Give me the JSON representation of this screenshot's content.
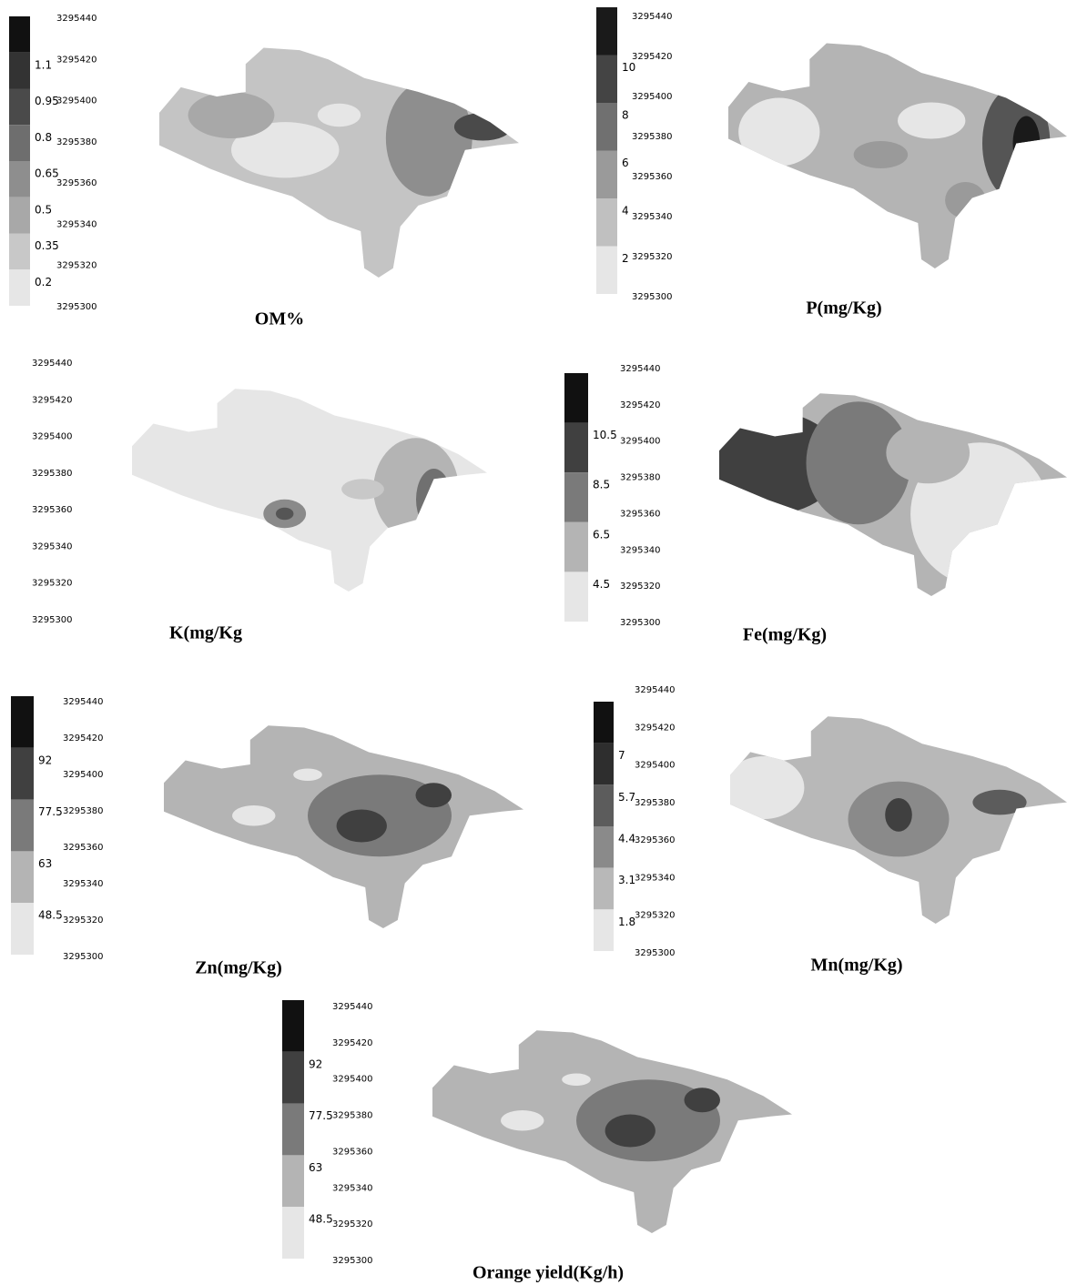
{
  "y_axis_labels": [
    "3295440",
    "3295420",
    "3295400",
    "3295380",
    "3295360",
    "3295340",
    "3295320",
    "3295300"
  ],
  "panels": [
    {
      "title": "OM%",
      "legend_labels": [
        "1.1",
        "0.95",
        "0.8",
        "0.65",
        "0.5",
        "0.35",
        "0.2"
      ],
      "legend_colors": [
        "#111111",
        "#333333",
        "#4a4a4a",
        "#6e6e6e",
        "#8e8e8e",
        "#a8a8a8",
        "#c8c8c8",
        "#e6e6e6"
      ]
    },
    {
      "title": "P(mg/Kg)",
      "legend_labels": [
        "10",
        "8",
        "6",
        "4",
        "2"
      ],
      "legend_colors": [
        "#1a1a1a",
        "#444444",
        "#707070",
        "#9a9a9a",
        "#c0c0c0",
        "#e6e6e6"
      ]
    },
    {
      "title": "K(mg/Kg"
    },
    {
      "title": "Fe(mg/Kg)",
      "legend_labels": [
        "10.5",
        "8.5",
        "6.5",
        "4.5"
      ],
      "legend_colors": [
        "#111111",
        "#404040",
        "#7a7a7a",
        "#b4b4b4",
        "#e6e6e6"
      ]
    },
    {
      "title": "Zn(mg/Kg)",
      "legend_labels": [
        "92",
        "77.5",
        "63",
        "48.5"
      ],
      "legend_colors": [
        "#111111",
        "#404040",
        "#7a7a7a",
        "#b4b4b4",
        "#e6e6e6"
      ]
    },
    {
      "title": "Mn(mg/Kg)",
      "legend_labels": [
        "7",
        "5.7",
        "4.4",
        "3.1",
        "1.8"
      ],
      "legend_colors": [
        "#111111",
        "#2e2e2e",
        "#5c5c5c",
        "#8a8a8a",
        "#b8b8b8",
        "#e6e6e6"
      ]
    },
    {
      "title": "Orange yield(Kg/h)",
      "legend_labels": [
        "92",
        "77.5",
        "63",
        "48.5"
      ],
      "legend_colors": [
        "#111111",
        "#404040",
        "#7a7a7a",
        "#b4b4b4",
        "#e6e6e6"
      ]
    }
  ]
}
